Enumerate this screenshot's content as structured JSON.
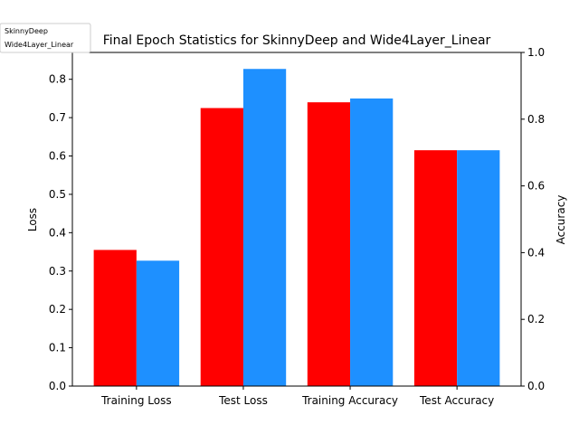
{
  "chart_data": {
    "type": "bar",
    "title": "Final Epoch Statistics for SkinnyDeep and Wide4Layer_Linear",
    "categories": [
      "Training Loss",
      "Test Loss",
      "Training Accuracy",
      "Test Accuracy"
    ],
    "ylabel": "Loss",
    "ylabel_right": "Accuracy",
    "ylim": [
      0,
      0.87
    ],
    "ylim_right": [
      0,
      1.0
    ],
    "yticks": [
      "0.0",
      "0.1",
      "0.2",
      "0.3",
      "0.4",
      "0.5",
      "0.6",
      "0.7",
      "0.8"
    ],
    "yticks_right": [
      "0.0",
      "0.2",
      "0.4",
      "0.6",
      "0.8",
      "1.0"
    ],
    "series": [
      {
        "name": "SkinnyDeep",
        "color": "#ff0000",
        "values": [
          0.355,
          0.725,
          0.74,
          0.615
        ]
      },
      {
        "name": "Wide4Layer_Linear",
        "color": "#1e90ff",
        "values": [
          0.327,
          0.827,
          0.75,
          0.615
        ]
      }
    ],
    "legend": "top-left",
    "grid": false
  }
}
